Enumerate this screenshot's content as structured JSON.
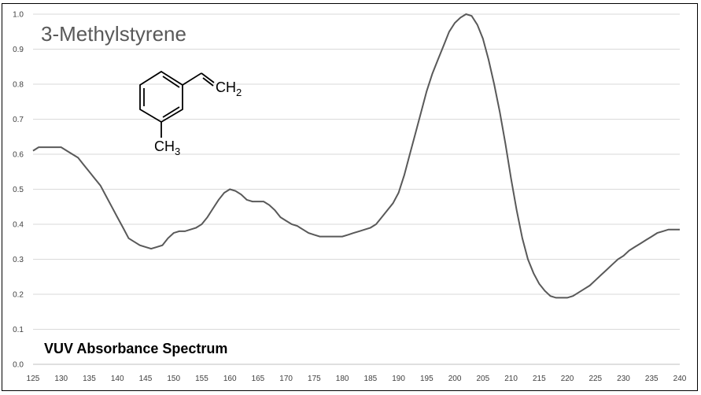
{
  "chart_data": {
    "type": "line",
    "title": "3-Methylstyrene",
    "subtitle": "VUV Absorbance Spectrum",
    "xlabel": "",
    "ylabel": "",
    "xlim": [
      125,
      240
    ],
    "ylim": [
      0,
      1.0
    ],
    "grid": "horizontal",
    "line_color": "#595959",
    "x_ticks": [
      "125",
      "130",
      "135",
      "140",
      "145",
      "150",
      "155",
      "160",
      "165",
      "170",
      "175",
      "180",
      "185",
      "190",
      "195",
      "200",
      "205",
      "210",
      "215",
      "220",
      "225",
      "230",
      "235",
      "240"
    ],
    "y_ticks": [
      "0.0",
      "0.1",
      "0.2",
      "0.3",
      "0.4",
      "0.5",
      "0.6",
      "0.7",
      "0.8",
      "0.9",
      "1.0"
    ],
    "series": [
      {
        "x": [
          125,
          126,
          127,
          128,
          129,
          130,
          131,
          132,
          133,
          134,
          135,
          136,
          137,
          138,
          139,
          140,
          141,
          142,
          143,
          144,
          145,
          146,
          147,
          148,
          149,
          150,
          151,
          152,
          153,
          154,
          155,
          156,
          157,
          158,
          159,
          160,
          161,
          162,
          163,
          164,
          165,
          166,
          167,
          168,
          169,
          170,
          171,
          172,
          173,
          174,
          175,
          176,
          177,
          178,
          179,
          180,
          181,
          182,
          183,
          184,
          185,
          186,
          187,
          188,
          189,
          190,
          191,
          192,
          193,
          194,
          195,
          196,
          197,
          198,
          199,
          200,
          201,
          202,
          203,
          204,
          205,
          206,
          207,
          208,
          209,
          210,
          211,
          212,
          213,
          214,
          215,
          216,
          217,
          218,
          219,
          220,
          221,
          222,
          223,
          224,
          225,
          226,
          227,
          228,
          229,
          230,
          231,
          232,
          233,
          234,
          235,
          236,
          237,
          238,
          239,
          240
        ],
        "values": [
          0.61,
          0.62,
          0.62,
          0.62,
          0.62,
          0.62,
          0.61,
          0.6,
          0.59,
          0.57,
          0.55,
          0.53,
          0.51,
          0.48,
          0.45,
          0.42,
          0.39,
          0.36,
          0.35,
          0.34,
          0.335,
          0.33,
          0.335,
          0.34,
          0.36,
          0.375,
          0.38,
          0.38,
          0.385,
          0.39,
          0.4,
          0.42,
          0.445,
          0.47,
          0.49,
          0.5,
          0.495,
          0.485,
          0.47,
          0.465,
          0.465,
          0.465,
          0.455,
          0.44,
          0.42,
          0.41,
          0.4,
          0.395,
          0.385,
          0.375,
          0.37,
          0.365,
          0.365,
          0.365,
          0.365,
          0.365,
          0.37,
          0.375,
          0.38,
          0.385,
          0.39,
          0.4,
          0.42,
          0.44,
          0.46,
          0.49,
          0.54,
          0.6,
          0.66,
          0.72,
          0.78,
          0.83,
          0.87,
          0.91,
          0.95,
          0.975,
          0.99,
          1.0,
          0.995,
          0.97,
          0.93,
          0.87,
          0.8,
          0.72,
          0.63,
          0.53,
          0.44,
          0.36,
          0.3,
          0.26,
          0.23,
          0.21,
          0.195,
          0.19,
          0.19,
          0.19,
          0.195,
          0.205,
          0.215,
          0.225,
          0.24,
          0.255,
          0.27,
          0.285,
          0.3,
          0.31,
          0.325,
          0.335,
          0.345,
          0.355,
          0.365,
          0.375,
          0.38,
          0.385,
          0.385,
          0.385
        ]
      }
    ]
  },
  "molecule": {
    "ch2_main": "CH",
    "ch2_sub": "2",
    "ch3_main": "CH",
    "ch3_sub": "3"
  }
}
